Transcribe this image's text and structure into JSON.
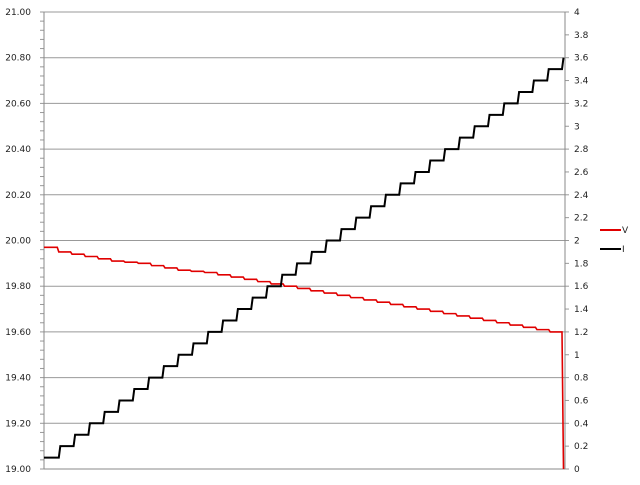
{
  "chart_data": {
    "type": "line",
    "title": "",
    "xlabel": "",
    "ylabel": "",
    "y_left": {
      "range": [
        19.0,
        21.0
      ],
      "ticks": [
        "19.00",
        "19.20",
        "19.40",
        "19.60",
        "19.80",
        "20.00",
        "20.20",
        "20.40",
        "20.60",
        "20.80",
        "21.00"
      ]
    },
    "y_right": {
      "range": [
        0,
        4
      ],
      "ticks": [
        "0",
        "0.2",
        "0.4",
        "0.6",
        "0.8",
        "1",
        "1.2",
        "1.4",
        "1.6",
        "1.8",
        "2",
        "2.2",
        "2.4",
        "2.6",
        "2.8",
        "3",
        "3.2",
        "3.4",
        "3.6",
        "3.8",
        "4"
      ]
    },
    "grid": true,
    "legend": "right",
    "series": [
      {
        "name": "V",
        "axis": "left",
        "color": "#e00000",
        "values": [
          19.97,
          19.95,
          19.94,
          19.93,
          19.92,
          19.91,
          19.905,
          19.9,
          19.89,
          19.88,
          19.87,
          19.865,
          19.86,
          19.85,
          19.84,
          19.83,
          19.82,
          19.81,
          19.8,
          19.79,
          19.78,
          19.77,
          19.76,
          19.75,
          19.74,
          19.73,
          19.72,
          19.71,
          19.7,
          19.69,
          19.68,
          19.67,
          19.66,
          19.65,
          19.64,
          19.63,
          19.62,
          19.61,
          19.6,
          19.0
        ]
      },
      {
        "name": "I",
        "axis": "right",
        "color": "#000000",
        "values": [
          0.1,
          0.2,
          0.3,
          0.4,
          0.5,
          0.6,
          0.7,
          0.8,
          0.9,
          1.0,
          1.1,
          1.2,
          1.3,
          1.4,
          1.5,
          1.6,
          1.7,
          1.8,
          1.9,
          2.0,
          2.1,
          2.2,
          2.3,
          2.4,
          2.5,
          2.6,
          2.7,
          2.8,
          2.9,
          3.0,
          3.1,
          3.2,
          3.3,
          3.4,
          3.5,
          3.6
        ]
      }
    ]
  }
}
